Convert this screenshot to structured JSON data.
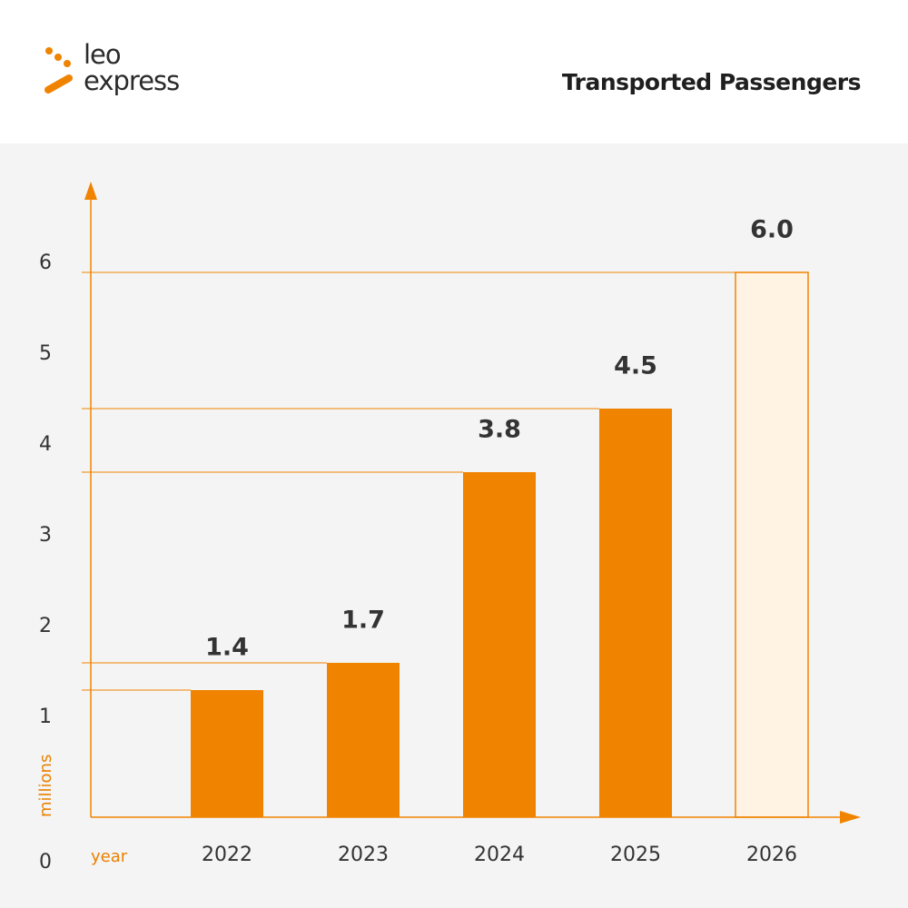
{
  "header": {
    "logo_line1": "leo",
    "logo_line2": "express",
    "title": "Transported Passengers"
  },
  "colors": {
    "accent": "#f08300",
    "projected_fill": "#fff3e3",
    "plot_bg": "#f4f4f4",
    "text": "#333333"
  },
  "chart_data": {
    "type": "bar",
    "title": "Transported Passengers",
    "categories": [
      "2022",
      "2023",
      "2024",
      "2025",
      "2026"
    ],
    "values": [
      1.4,
      1.7,
      3.8,
      4.5,
      6.0
    ],
    "value_labels": [
      "1.4",
      "1.7",
      "3.8",
      "4.5",
      "6.0"
    ],
    "projected": [
      false,
      false,
      false,
      false,
      true
    ],
    "xlabel": "year",
    "ylabel": "millions",
    "yticks": [
      "0",
      "1",
      "2",
      "3",
      "4",
      "5",
      "6"
    ],
    "ylim": [
      0,
      7
    ],
    "grid": false,
    "reference_lines": true
  }
}
